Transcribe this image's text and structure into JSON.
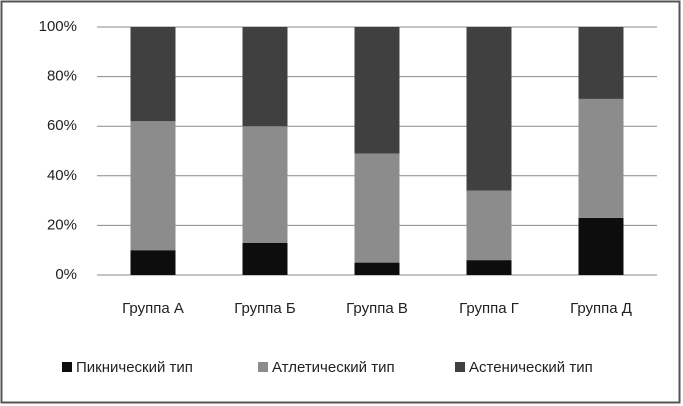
{
  "chart_data": {
    "type": "stacked_bar",
    "categories": [
      "Группа А",
      "Группа Б",
      "Группа В",
      "Группа Г",
      "Группа Д"
    ],
    "series": [
      {
        "name": "Пикнический тип",
        "color": "#0d0d0d",
        "values": [
          10,
          13,
          5,
          6,
          23
        ]
      },
      {
        "name": "Атлетический тип",
        "color": "#8c8c8c",
        "values": [
          52,
          47,
          44,
          28,
          48
        ]
      },
      {
        "name": "Астенический тип",
        "color": "#404040",
        "values": [
          38,
          40,
          51,
          66,
          29
        ]
      }
    ],
    "ylim": [
      0,
      100
    ],
    "yticks": [
      {
        "value": 0,
        "label": "0%"
      },
      {
        "value": 20,
        "label": "20%"
      },
      {
        "value": 40,
        "label": "40%"
      },
      {
        "value": 60,
        "label": "60%"
      },
      {
        "value": 80,
        "label": "80%"
      },
      {
        "value": 100,
        "label": "100%"
      }
    ],
    "grid": true,
    "legend": "bottom"
  }
}
